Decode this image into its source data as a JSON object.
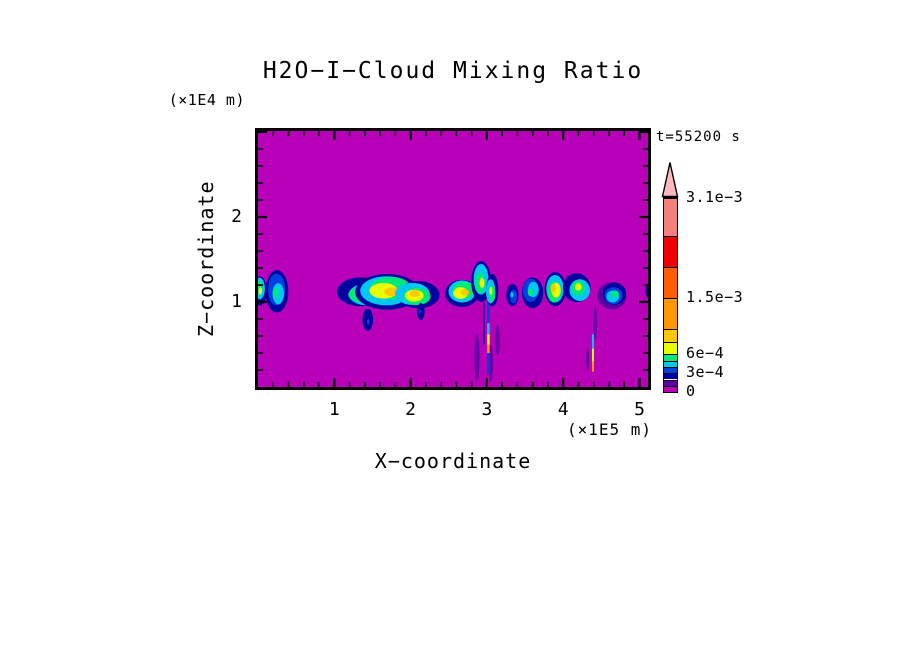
{
  "chart_data": {
    "type": "heatmap",
    "title": "H2O−I−Cloud Mixing Ratio",
    "annotation": "t=55200 s",
    "xlabel": "X−coordinate",
    "x_unit": "(×1E5 m)",
    "zlabel": "Z−coordinate",
    "z_unit": "(×1E4 m)",
    "xlim": [
      0,
      5.17
    ],
    "zlim": [
      0,
      3.05
    ],
    "x_major_ticks": [
      1,
      2,
      3,
      4,
      5
    ],
    "x_minor_step": 0.2,
    "z_major_ticks": [
      1,
      2
    ],
    "z_minor_step": 0.2,
    "background_color": "#b800b8",
    "palette": {
      "magenta": "#b800b8",
      "violet": "#5c00a3",
      "navy": "#0000a0",
      "blue": "#0040e0",
      "cyan": "#00c8f0",
      "green": "#00e878",
      "yellow": "#e8ff00",
      "gold": "#ffc800",
      "orange": "#ff9800",
      "darkorange": "#ff5f00",
      "red": "#f00000",
      "salmon": "#f58080",
      "arrowpink": "#ffb8c0"
    },
    "colorbar": {
      "levels": [
        0,
        0.0001,
        0.0002,
        0.0003,
        0.0004,
        0.0005,
        0.0006,
        0.0008,
        0.001,
        0.0015,
        0.002,
        0.0025,
        0.0031
      ],
      "colors": [
        "magenta",
        "violet",
        "navy",
        "blue",
        "cyan",
        "green",
        "yellow",
        "gold",
        "orange",
        "darkorange",
        "red",
        "salmon"
      ],
      "overflow_arrow_color": "arrowpink",
      "labeled": [
        {
          "value": 0,
          "text": "0"
        },
        {
          "value": 0.0003,
          "text": "3e−4"
        },
        {
          "value": 0.0006,
          "text": "6e−4"
        },
        {
          "value": 0.0015,
          "text": "1.5e−3"
        },
        {
          "value": 0.0031,
          "text": "3.1e−3"
        }
      ]
    },
    "clouds": [
      {
        "x": 0.02,
        "z": 1.15,
        "rx": 0.09,
        "rz": 0.17,
        "peak": "yellow"
      },
      {
        "x": 0.25,
        "z": 1.12,
        "rx": 0.15,
        "rz": 0.25,
        "peak": "green"
      },
      {
        "x": 1.38,
        "z": 1.1,
        "rx": 0.31,
        "rz": 0.17,
        "peak": "yellow"
      },
      {
        "x": 1.7,
        "z": 1.14,
        "rx": 0.42,
        "rz": 0.21,
        "peak": "gold"
      },
      {
        "x": 2.06,
        "z": 1.08,
        "rx": 0.28,
        "rz": 0.16,
        "peak": "gold"
      },
      {
        "x": 1.44,
        "z": 0.78,
        "rx": 0.07,
        "rz": 0.13,
        "peak": "blue"
      },
      {
        "x": 2.13,
        "z": 0.88,
        "rx": 0.05,
        "rz": 0.1,
        "peak": "blue"
      },
      {
        "x": 2.68,
        "z": 1.12,
        "rx": 0.22,
        "rz": 0.16,
        "peak": "gold"
      },
      {
        "x": 2.92,
        "z": 1.24,
        "rx": 0.13,
        "rz": 0.24,
        "peak": "yellow"
      },
      {
        "x": 3.06,
        "z": 1.12,
        "rx": 0.08,
        "rz": 0.19,
        "peak": "yellow"
      },
      {
        "x": 3.34,
        "z": 1.08,
        "rx": 0.08,
        "rz": 0.13,
        "peak": "cyan"
      },
      {
        "x": 3.59,
        "z": 1.13,
        "rx": 0.14,
        "rz": 0.18,
        "peak": "green"
      },
      {
        "x": 3.89,
        "z": 1.14,
        "rx": 0.14,
        "rz": 0.2,
        "peak": "gold"
      },
      {
        "x": 4.2,
        "z": 1.16,
        "rx": 0.18,
        "rz": 0.17,
        "peak": "yellow"
      },
      {
        "x": 4.66,
        "z": 1.08,
        "rx": 0.19,
        "rz": 0.16,
        "peak": "green",
        "halo": true
      },
      {
        "x": 5.17,
        "z": 1.13,
        "rx": 0.08,
        "rz": 0.11,
        "peak": "cyan"
      }
    ],
    "streaks": [
      {
        "x": 3.02,
        "w": 2.5,
        "segments": [
          {
            "c": "blue",
            "z": [
              0.75,
              1.1
            ]
          },
          {
            "c": "cyan",
            "z": [
              0.62,
              0.75
            ]
          },
          {
            "c": "yellow",
            "z": [
              0.5,
              0.62
            ]
          },
          {
            "c": "orange",
            "z": [
              0.4,
              0.5
            ]
          },
          {
            "c": "blue",
            "z": [
              0.15,
              0.4
            ]
          }
        ]
      },
      {
        "x": 2.96,
        "w": 1.5,
        "segments": [
          {
            "c": "navy",
            "z": [
              0.5,
              1.0
            ]
          }
        ]
      },
      {
        "x": 4.39,
        "w": 2,
        "segments": [
          {
            "c": "cyan",
            "z": [
              0.45,
              0.62
            ]
          },
          {
            "c": "yellow",
            "z": [
              0.3,
              0.45
            ]
          },
          {
            "c": "orange",
            "z": [
              0.18,
              0.3
            ]
          }
        ]
      }
    ],
    "wisps": [
      {
        "x": 2.87,
        "z": 0.35,
        "rx": 0.035,
        "rz": 0.28
      },
      {
        "x": 3.05,
        "z": 0.28,
        "rx": 0.03,
        "rz": 0.22
      },
      {
        "x": 3.14,
        "z": 0.55,
        "rx": 0.03,
        "rz": 0.18
      },
      {
        "x": 4.32,
        "z": 0.33,
        "rx": 0.02,
        "rz": 0.14
      },
      {
        "x": 4.42,
        "z": 0.75,
        "rx": 0.025,
        "rz": 0.2
      }
    ]
  }
}
